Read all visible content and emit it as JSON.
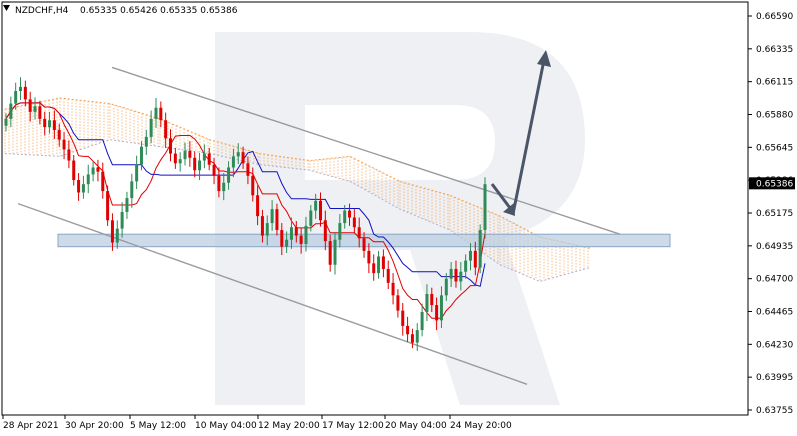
{
  "header": {
    "symbol": "NZDCHF,H4",
    "ohlc": "0.65335 0.65426 0.65335 0.65386",
    "menu_icon": "triangle-down-icon"
  },
  "current_price": "0.65386",
  "colors": {
    "bull": "#2e8b57",
    "bear": "#e00000",
    "kijun": "#1010c0",
    "tenkan": "#e00000",
    "cloud": "#f5a050",
    "channel": "#9a9aa0",
    "arrow": "#4a5568",
    "zone": "#b8cce0",
    "watermark": "#eef0f4",
    "price_tag_bg": "#000000"
  },
  "chart_data": {
    "type": "candlestick",
    "title": "NZDCHF,H4",
    "y_ticks": [
      "0.66590",
      "0.66335",
      "0.66115",
      "0.65880",
      "0.65645",
      "0.65386",
      "0.65175",
      "0.64935",
      "0.64700",
      "0.64465",
      "0.64230",
      "0.63995",
      "0.63755"
    ],
    "x_ticks": [
      "28 Apr 2021",
      "30 Apr 20:00",
      "5 May 12:00",
      "10 May 04:00",
      "12 May 20:00",
      "17 May 12:00",
      "20 May 04:00",
      "24 May 20:00"
    ],
    "ylim": [
      0.63755,
      0.6659
    ],
    "close_series": [
      0.6585,
      0.6596,
      0.6605,
      0.6608,
      0.6599,
      0.659,
      0.6594,
      0.6585,
      0.6579,
      0.6584,
      0.6577,
      0.657,
      0.6563,
      0.6555,
      0.6541,
      0.6532,
      0.6538,
      0.6545,
      0.655,
      0.6547,
      0.6533,
      0.6512,
      0.6496,
      0.6506,
      0.6518,
      0.6528,
      0.654,
      0.6552,
      0.6565,
      0.6572,
      0.6585,
      0.6593,
      0.6584,
      0.6571,
      0.656,
      0.6553,
      0.6556,
      0.6562,
      0.6557,
      0.6548,
      0.6555,
      0.656,
      0.6552,
      0.6544,
      0.6533,
      0.6539,
      0.655,
      0.6558,
      0.6561,
      0.6553,
      0.6544,
      0.653,
      0.6515,
      0.6501,
      0.651,
      0.652,
      0.6505,
      0.6493,
      0.6498,
      0.6507,
      0.6501,
      0.6495,
      0.6508,
      0.6519,
      0.6526,
      0.6512,
      0.6497,
      0.648,
      0.6498,
      0.651,
      0.6519,
      0.6514,
      0.6507,
      0.6499,
      0.649,
      0.6481,
      0.6474,
      0.6486,
      0.6477,
      0.6467,
      0.6458,
      0.6447,
      0.6436,
      0.643,
      0.6424,
      0.6433,
      0.6446,
      0.6459,
      0.6451,
      0.644,
      0.6458,
      0.647,
      0.6477,
      0.6468,
      0.6475,
      0.6483,
      0.649,
      0.6478,
      0.6505,
      0.6538
    ],
    "channel_upper": [
      [
        0.0,
        0.6622
      ],
      [
        1.0,
        0.6502
      ]
    ],
    "channel_lower": [
      [
        0.0,
        0.6524
      ],
      [
        1.0,
        0.6394
      ]
    ],
    "support_zone": [
      0.6493,
      0.6502
    ],
    "forecast_arrow": "down then up"
  }
}
